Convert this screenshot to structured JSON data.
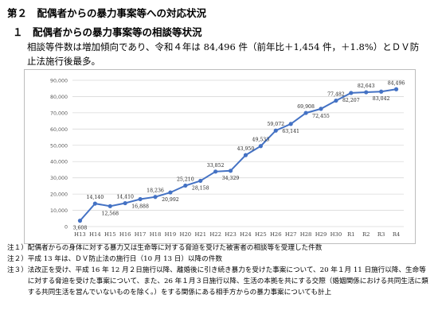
{
  "heading": "第２　配偶者からの暴力事案等への対応状況",
  "subheading": "１　配偶者からの暴力事案等の相談等状況",
  "body": "相談等件数は増加傾向であり、令和４年は 84,496 件（前年比＋1,454 件，＋1.8%）とＤＶ防止法施行後最多。",
  "chart_data": {
    "type": "line",
    "title": "",
    "xlabel": "",
    "ylabel": "",
    "ylim": [
      0,
      90000
    ],
    "yticks": [
      "0",
      "10,000",
      "20,000",
      "30,000",
      "40,000",
      "50,000",
      "60,000",
      "70,000",
      "80,000",
      "90,000"
    ],
    "categories": [
      "H13",
      "H14",
      "H15",
      "H16",
      "H17",
      "H18",
      "H19",
      "H20",
      "H21",
      "H22",
      "H23",
      "H24",
      "H25",
      "H26",
      "H27",
      "H28",
      "H29",
      "H30",
      "R1",
      "R2",
      "R3",
      "R4"
    ],
    "values": [
      3608,
      14140,
      12568,
      14410,
      16888,
      18236,
      20992,
      25210,
      28158,
      33852,
      34329,
      43950,
      49533,
      59072,
      63141,
      69908,
      72455,
      77482,
      82207,
      82643,
      83042,
      84496
    ],
    "labels": [
      "3,608",
      "14,140",
      "12,568",
      "14,410",
      "16,888",
      "18,236",
      "20,992",
      "25,210",
      "28,158",
      "33,852",
      "34,329",
      "43,950",
      "49,533",
      "59,072",
      "63,141",
      "69,908",
      "72,455",
      "77,482",
      "82,207",
      "82,643",
      "83,042",
      "84,496"
    ],
    "label_pos": [
      "below",
      "above",
      "below",
      "above",
      "below",
      "above",
      "below",
      "above",
      "below",
      "above",
      "below",
      "above",
      "above",
      "above",
      "below",
      "above",
      "below",
      "above",
      "below",
      "above",
      "below",
      "above"
    ],
    "grid": true,
    "line_color": "#4472c4"
  },
  "notes": [
    {
      "id": "注１）",
      "text": "配偶者からの身体に対する暴力又は生命等に対する脅迫を受けた被害者の相談等を受理した件数"
    },
    {
      "id": "注２）",
      "text": "平成 13 年は、ＤＶ防止法の施行日（10 月 13 日）以降の件数"
    },
    {
      "id": "注３）",
      "text": "法改正を受け、平成 16 年 12 月２日施行以降、離婚後に引き続き暴力を受けた事案について、20 年１月 11 日施行以降、生命等に対する脅迫を受けた事案について、また、26 年１月３日施行以降、生活の本拠を共にする交際（婚姻関係における共同生活に類する共同生活を営んでいないものを除く。）をする関係にある相手方からの暴力事案についても計上"
    }
  ]
}
